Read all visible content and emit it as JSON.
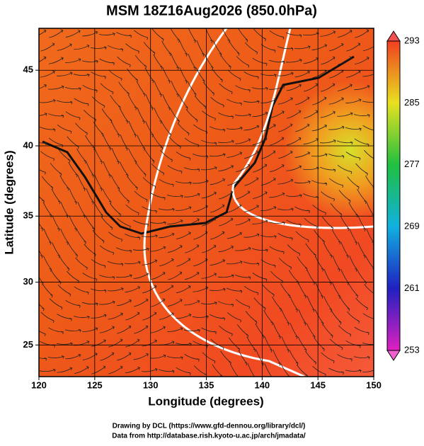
{
  "title": "MSM 18Z16Aug2026 (850.0hPa)",
  "x_axis": {
    "label": "Longitude (degrees)",
    "lim": [
      120,
      150
    ],
    "ticks": [
      120,
      125,
      130,
      135,
      140,
      145,
      150
    ]
  },
  "y_axis": {
    "label": "Latitude  (degrees)",
    "lim": [
      22.4,
      47.6
    ],
    "ticks": [
      25,
      30,
      35,
      40,
      45
    ]
  },
  "colorbar": {
    "lim": [
      253,
      293
    ],
    "ticks": [
      253,
      261,
      269,
      277,
      285,
      293
    ]
  },
  "credits": [
    "Drawing by DCL (https://www.gfd-dennou.org/library/dcl/)",
    "Data from http://database.rish.kyoto-u.ac.jp/arch/jmadata/"
  ]
}
